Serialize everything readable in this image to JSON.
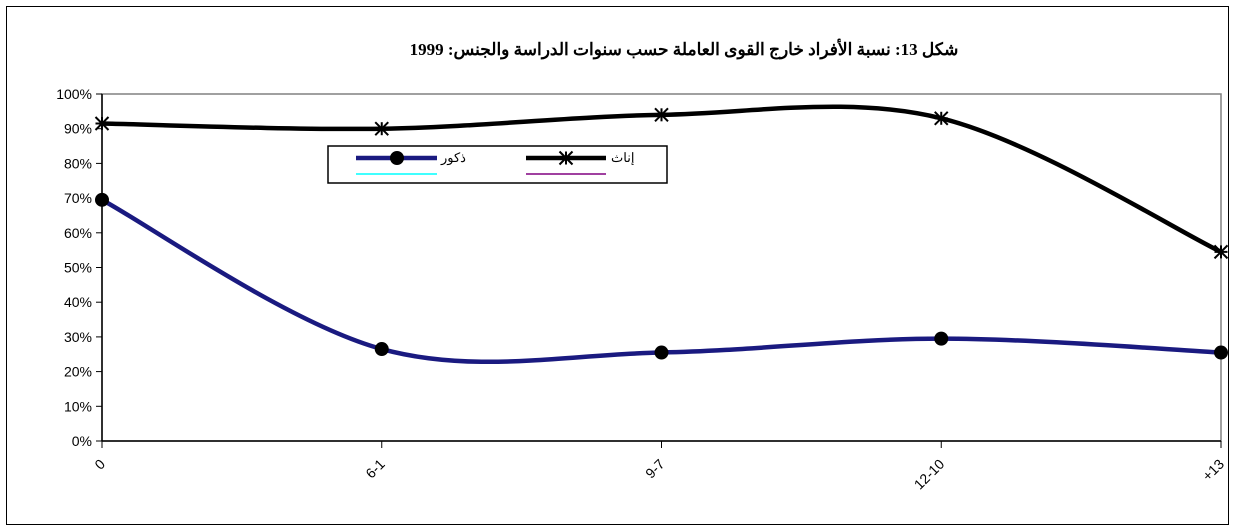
{
  "chart_data": {
    "type": "line",
    "title": "شكل 13:  نسبة الأفراد خارج القوى العاملة حسب سنوات الدراسة والجنس: 1999",
    "categories": [
      "0",
      "6-1",
      "9-7",
      "12-10",
      "+13"
    ],
    "y_ticks": [
      "0%",
      "10%",
      "20%",
      "30%",
      "40%",
      "50%",
      "60%",
      "70%",
      "80%",
      "90%",
      "100%"
    ],
    "ylim": [
      0,
      100
    ],
    "grid": false,
    "smooth": true,
    "legend_position": "top-left",
    "series": [
      {
        "name": "ذكور",
        "values": [
          69.5,
          26.5,
          25.5,
          29.5,
          25.5
        ],
        "color": "#1a1a80",
        "marker": "circle"
      },
      {
        "name": "إناث",
        "values": [
          91.5,
          90,
          94,
          93,
          54.5
        ],
        "color": "#000000",
        "marker": "asterisk"
      }
    ],
    "empty_legend_entries": [
      {
        "color": "#00ffff"
      },
      {
        "color": "#800080"
      }
    ]
  }
}
